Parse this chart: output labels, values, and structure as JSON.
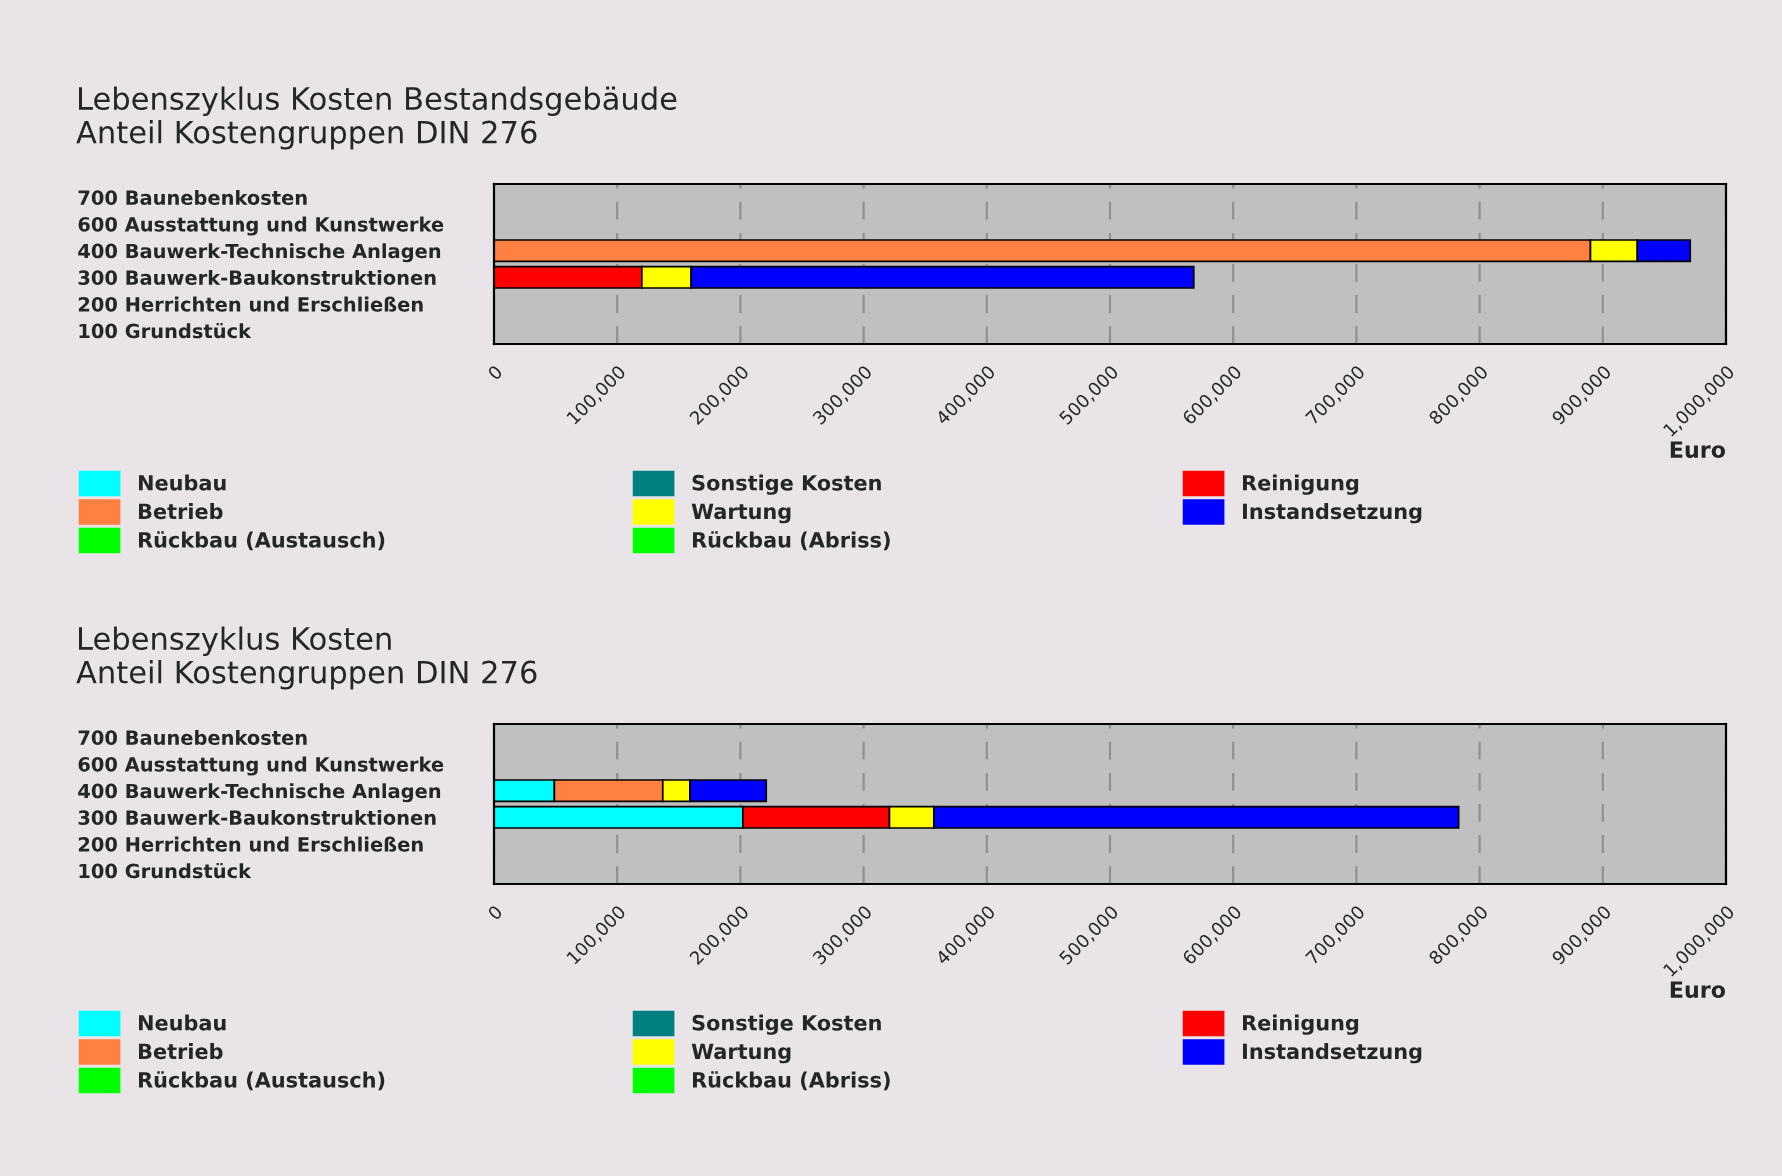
{
  "chart_data": [
    {
      "type": "bar",
      "orientation": "horizontal",
      "stacked": true,
      "title": "Lebenszyklus Kosten Bestandsgebäude",
      "subtitle": "Anteil Kostengruppen DIN 276",
      "xlabel": "Euro",
      "categories": [
        "700 Baunebenkosten",
        "600 Ausstattung und Kunstwerke",
        "400 Bauwerk-Technische Anlagen",
        "300 Bauwerk-Baukonstruktionen",
        "200 Herrichten und Erschließen",
        "100 Grundstück"
      ],
      "series": [
        {
          "name": "Neubau",
          "color": "#00ffff",
          "values": [
            null,
            null,
            null,
            null,
            null,
            null
          ]
        },
        {
          "name": "Sonstige Kosten",
          "color": "#008080",
          "values": [
            null,
            null,
            null,
            null,
            null,
            null
          ]
        },
        {
          "name": "Reinigung",
          "color": "#ff0000",
          "values": [
            null,
            null,
            null,
            120000,
            null,
            null
          ]
        },
        {
          "name": "Betrieb",
          "color": "#ff8040",
          "values": [
            null,
            null,
            890000,
            null,
            null,
            null
          ]
        },
        {
          "name": "Wartung",
          "color": "#ffff00",
          "values": [
            null,
            null,
            38000,
            40000,
            null,
            null
          ]
        },
        {
          "name": "Instandsetzung",
          "color": "#0000ff",
          "values": [
            null,
            null,
            43000,
            408000,
            null,
            null
          ]
        },
        {
          "name": "Rückbau (Austausch)",
          "color": "#00ff00",
          "values": [
            null,
            null,
            null,
            null,
            null,
            null
          ]
        },
        {
          "name": "Rückbau (Abriss)",
          "color": "#00ff00",
          "values": [
            null,
            null,
            null,
            null,
            null,
            null
          ]
        }
      ],
      "xlim": [
        0,
        1000000
      ],
      "xticks": [
        0,
        {
          "value": 100000,
          "label": "100,000"
        },
        {
          "value": 200000,
          "label": "200,000"
        },
        {
          "value": 300000,
          "label": "300,000"
        },
        {
          "value": 400000,
          "label": "400,000"
        },
        {
          "value": 500000,
          "label": "500,000"
        },
        {
          "value": 600000,
          "label": "600,000"
        },
        {
          "value": 700000,
          "label": "700,000"
        },
        {
          "value": 800000,
          "label": "800,000"
        },
        {
          "value": 900000,
          "label": "900,000"
        },
        {
          "value": 1000000,
          "label": "1,000,000"
        }
      ],
      "grid": "x",
      "legend": "bottom"
    },
    {
      "type": "bar",
      "orientation": "horizontal",
      "stacked": true,
      "title": "Lebenszyklus Kosten",
      "subtitle": "Anteil Kostengruppen DIN 276",
      "xlabel": "Euro",
      "categories": [
        "700 Baunebenkosten",
        "600 Ausstattung und Kunstwerke",
        "400 Bauwerk-Technische Anlagen",
        "300 Bauwerk-Baukonstruktionen",
        "200 Herrichten und Erschließen",
        "100 Grundstück"
      ],
      "series": [
        {
          "name": "Neubau",
          "color": "#00ffff",
          "values": [
            null,
            null,
            49000,
            202000,
            null,
            null
          ]
        },
        {
          "name": "Sonstige Kosten",
          "color": "#008080",
          "values": [
            null,
            null,
            null,
            null,
            null,
            null
          ]
        },
        {
          "name": "Reinigung",
          "color": "#ff0000",
          "values": [
            null,
            null,
            null,
            119000,
            null,
            null
          ]
        },
        {
          "name": "Betrieb",
          "color": "#ff8040",
          "values": [
            null,
            null,
            88000,
            null,
            null,
            null
          ]
        },
        {
          "name": "Wartung",
          "color": "#ffff00",
          "values": [
            null,
            null,
            22000,
            36000,
            null,
            null
          ]
        },
        {
          "name": "Instandsetzung",
          "color": "#0000ff",
          "values": [
            null,
            null,
            62000,
            426000,
            null,
            null
          ]
        },
        {
          "name": "Rückbau (Austausch)",
          "color": "#00ff00",
          "values": [
            null,
            null,
            null,
            null,
            null,
            null
          ]
        },
        {
          "name": "Rückbau (Abriss)",
          "color": "#00ff00",
          "values": [
            null,
            null,
            null,
            null,
            null,
            null
          ]
        }
      ],
      "xlim": [
        0,
        1000000
      ],
      "xticks": [
        0,
        {
          "value": 100000,
          "label": "100,000"
        },
        {
          "value": 200000,
          "label": "200,000"
        },
        {
          "value": 300000,
          "label": "300,000"
        },
        {
          "value": 400000,
          "label": "400,000"
        },
        {
          "value": 500000,
          "label": "500,000"
        },
        {
          "value": 600000,
          "label": "600,000"
        },
        {
          "value": 700000,
          "label": "700,000"
        },
        {
          "value": 800000,
          "label": "800,000"
        },
        {
          "value": 900000,
          "label": "900,000"
        },
        {
          "value": 1000000,
          "label": "1,000,000"
        }
      ],
      "grid": "x",
      "legend": "bottom"
    }
  ]
}
